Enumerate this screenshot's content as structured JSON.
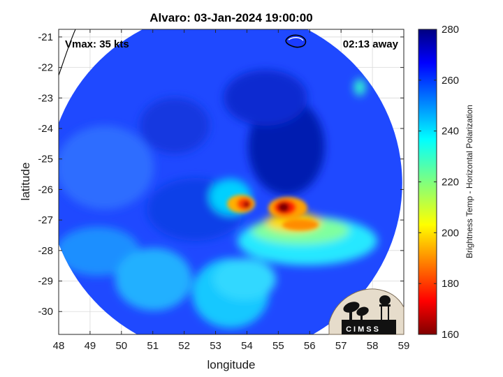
{
  "chart_data": {
    "type": "heatmap",
    "title": "Alvaro: 03-Jan-2024 19:00:00",
    "xlabel": "longitude",
    "ylabel": "latitude",
    "xlim": [
      48,
      59
    ],
    "ylim": [
      -30.75,
      -20.75
    ],
    "xticks": [
      48,
      49,
      50,
      51,
      52,
      53,
      54,
      55,
      56,
      57,
      58,
      59
    ],
    "yticks": [
      -21,
      -22,
      -23,
      -24,
      -25,
      -26,
      -27,
      -28,
      -29,
      -30
    ],
    "grid": true,
    "annotations": {
      "vmax": "Vmax: 35 kts",
      "time_away": "02:13 away"
    },
    "colorbar": {
      "label": "Brightness Temp - Horizontal Polarization",
      "min": 160,
      "max": 280,
      "ticks": [
        160,
        180,
        200,
        220,
        240,
        260,
        280
      ],
      "colormap": "jet"
    },
    "swath": {
      "center": [
        53.3,
        -25.8
      ],
      "radius_lon": 5.65,
      "radius_lat": 5.7
    },
    "features": [
      {
        "name": "cold core west",
        "lon": 54.0,
        "lat": -26.55,
        "min_tb": 165
      },
      {
        "name": "cold core east",
        "lon": 55.2,
        "lat": -26.65,
        "min_tb": 162
      },
      {
        "name": "rain band south",
        "lon": 55.3,
        "lat": -27.7,
        "tb": 218
      },
      {
        "name": "central cold region",
        "lon": 55.0,
        "lat": -24.8,
        "tb": 268
      }
    ]
  },
  "logo": {
    "text": "CIMSS"
  },
  "colors": {
    "axis": "#262626",
    "grid": "#d9d9d9",
    "coast": "#000000"
  }
}
